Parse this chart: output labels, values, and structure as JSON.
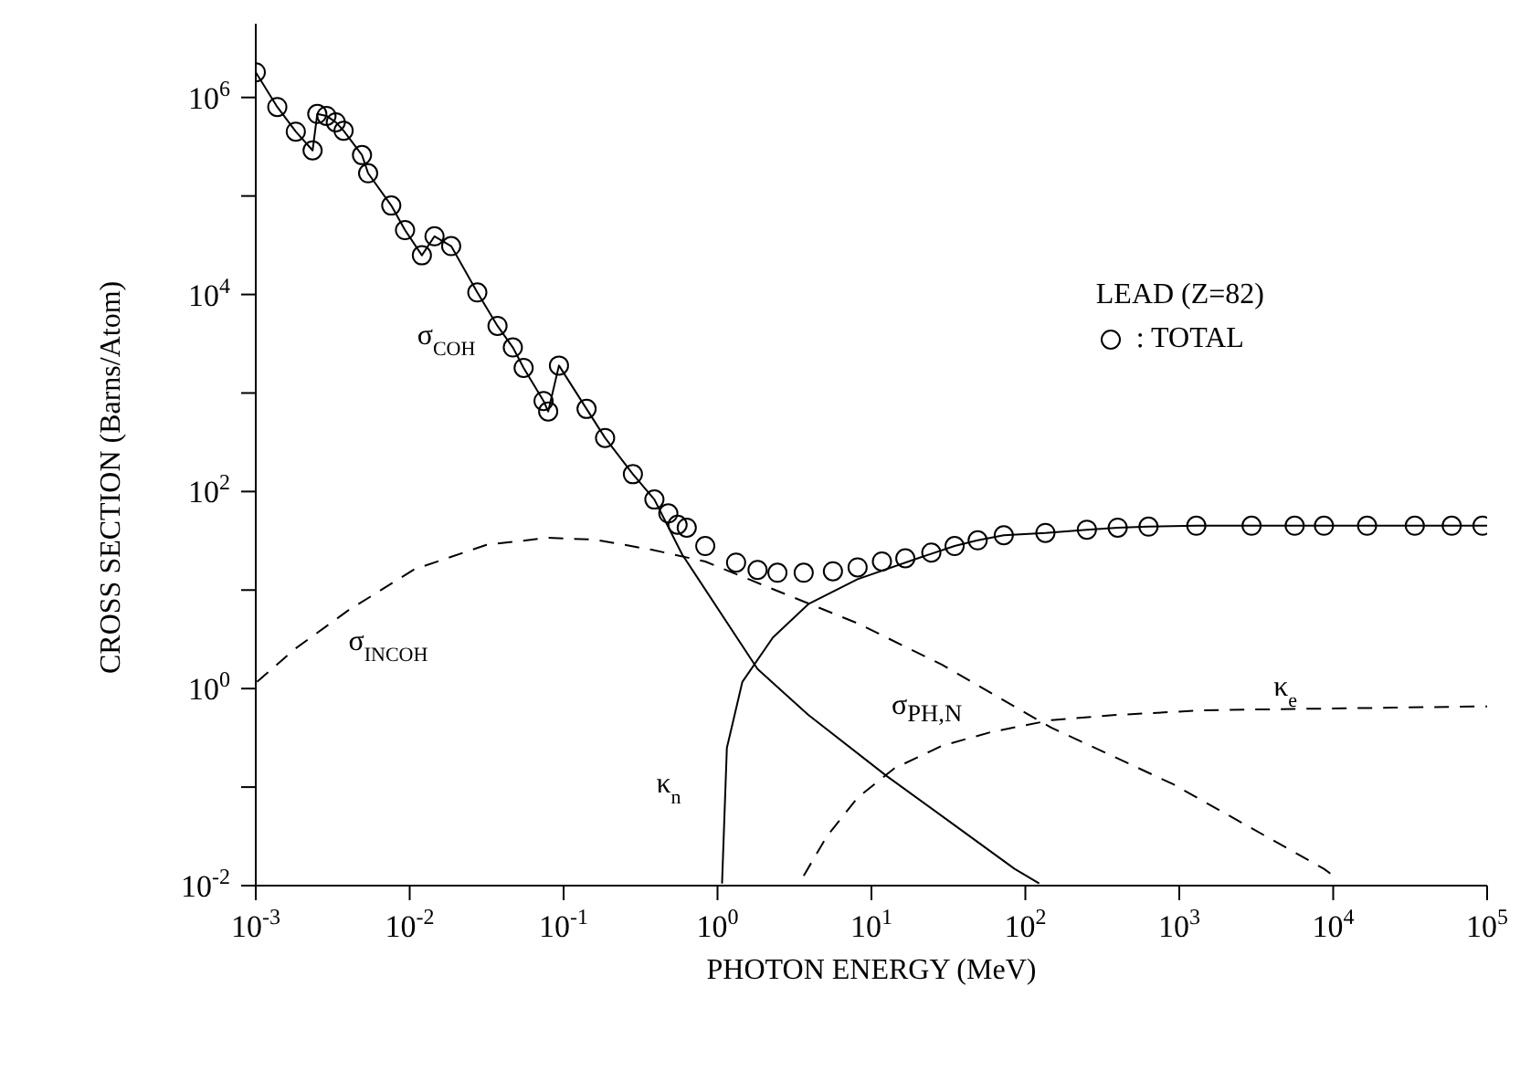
{
  "chart_data": {
    "type": "line",
    "xlabel": "PHOTON ENERGY (MeV)",
    "ylabel": "CROSS SECTION (Barns/Atom)",
    "log": "xy",
    "legend": "top right",
    "xlim": [
      0.001,
      100000
    ],
    "ylim": [
      0.01,
      5600000
    ],
    "xticks": [
      {
        "value": 0.001,
        "label": "10$^{-3}$"
      },
      {
        "value": 0.01,
        "label": "10$^{-2}$"
      },
      {
        "value": 0.1,
        "label": "10$^{-1}$"
      },
      {
        "value": 1,
        "label": "10$^{0}$"
      },
      {
        "value": 10,
        "label": "10$^{1}$"
      },
      {
        "value": 100,
        "label": "10$^{2}$"
      },
      {
        "value": 1000,
        "label": "10$^{3}$"
      },
      {
        "value": 10000,
        "label": "10$^{4}$"
      },
      {
        "value": 100000,
        "label": "10$^{5}$"
      }
    ],
    "yticks": [
      {
        "value": 0.01,
        "label": "10$^{-2}$"
      },
      {
        "value": 0.1,
        "label": null
      },
      {
        "value": 1,
        "label": "10$^{0}$"
      },
      {
        "value": 10,
        "label": null
      },
      {
        "value": 100,
        "label": "10$^{2}$"
      },
      {
        "value": 1000,
        "label": null
      },
      {
        "value": 10000,
        "label": "10$^{4}$"
      },
      {
        "value": 100000,
        "label": null
      },
      {
        "value": 1000000,
        "label": "10$^{6}$"
      }
    ],
    "annotations": [
      "LEAD (Z=82)",
      "σ$_{PH,N}$"
    ],
    "series": [
      {
        "name": ": TOTAL",
        "type": "scatter",
        "color": "#000000",
        "marker": "circle",
        "x": [
          0.001,
          0.00138,
          0.00182,
          0.00234,
          0.00251,
          0.00288,
          0.00331,
          0.00372,
          0.0049,
          0.00537,
          0.00759,
          0.00933,
          0.012,
          0.0145,
          0.0186,
          0.0275,
          0.0372,
          0.0468,
          0.055,
          0.0741,
          0.0794,
          0.0933,
          0.141,
          0.186,
          0.282,
          0.389,
          0.479,
          0.55,
          0.631,
          0.832,
          1.32,
          1.82,
          2.45,
          3.63,
          5.62,
          8.13,
          11.7,
          16.6,
          24.5,
          34.7,
          49,
          72.4,
          135,
          251,
          398,
          631,
          1290,
          2950,
          5620,
          8710,
          16600,
          33900,
          58900,
          93300
        ],
        "values": [
          1800000,
          800000,
          450000,
          290000,
          680000,
          650000,
          560000,
          460000,
          260000,
          170000,
          80000,
          45000,
          25000,
          39000,
          31000,
          10500,
          4800,
          2900,
          1800,
          830,
          650,
          1900,
          690,
          350,
          150,
          83,
          60,
          46,
          43,
          28,
          19,
          16,
          15,
          15,
          15.5,
          17,
          19.5,
          21,
          24,
          28,
          32,
          36,
          38,
          41,
          43,
          44,
          45,
          45,
          45,
          45,
          45,
          45,
          45,
          45
        ]
      },
      {
        "name": "σ$_{COH}$",
        "color": "#000000",
        "marker": "none",
        "line_style": "solid",
        "x": [
          0.001,
          0.00138,
          0.00182,
          0.00234,
          0.00251,
          0.00288,
          0.00331,
          0.00372,
          0.0049,
          0.00537,
          0.00759,
          0.00933,
          0.012,
          0.0145,
          0.0186,
          0.0275,
          0.0372,
          0.0468,
          0.055,
          0.0741,
          0.0794,
          0.0933,
          0.141,
          0.186,
          0.282,
          0.389,
          0.589,
          1.82,
          3.89,
          12.6,
          34.7,
          85.1,
          123
        ],
        "values": [
          1800000,
          800000,
          450000,
          290000,
          680000,
          650000,
          560000,
          460000,
          260000,
          170000,
          80000,
          45000,
          25000,
          39000,
          31000,
          10500,
          4800,
          2900,
          1800,
          830,
          650,
          1900,
          690,
          350,
          150,
          83,
          23,
          1.58,
          0.54,
          0.129,
          0.041,
          0.0148,
          0.0105
        ]
      },
      {
        "name": "κ$_{n}$",
        "color": "#000000",
        "marker": "none",
        "line_style": "solid",
        "x": [
          1.07,
          1.15,
          1.45,
          2.29,
          3.89,
          8.13,
          20,
          34.7,
          49,
          72.4,
          135,
          251,
          398,
          631,
          1290,
          2950,
          5620,
          8710,
          16600,
          33900,
          58900,
          100000
        ],
        "values": [
          0.0105,
          0.25,
          1.17,
          3.3,
          7.2,
          12.9,
          21,
          28,
          32,
          36,
          38,
          41,
          43,
          44,
          45,
          45,
          45,
          45,
          45,
          45,
          45,
          45
        ]
      },
      {
        "name": "σ$_{INCOH}$",
        "color": "#000000",
        "marker": "none",
        "line_style": "dashed",
        "x": [
          0.00102,
          0.00178,
          0.00398,
          0.0107,
          0.0316,
          0.0794,
          0.162,
          0.372,
          0.832,
          2.45,
          8.13,
          28.8,
          148,
          912,
          8710,
          10000
        ],
        "values": [
          1.17,
          2.5,
          6.2,
          16.2,
          28.8,
          33.9,
          32.4,
          25.7,
          19.5,
          9.8,
          4.6,
          1.74,
          0.4,
          0.107,
          0.0148,
          0.0126
        ]
      },
      {
        "name": "κ$_{e}$",
        "color": "#000000",
        "marker": "none",
        "line_style": "dashed",
        "x": [
          3.63,
          5.13,
          8.13,
          14.1,
          28.8,
          60.3,
          148,
          372,
          1450,
          100000
        ],
        "values": [
          0.0126,
          0.0316,
          0.078,
          0.155,
          0.263,
          0.363,
          0.479,
          0.537,
          0.603,
          0.66
        ]
      }
    ]
  }
}
